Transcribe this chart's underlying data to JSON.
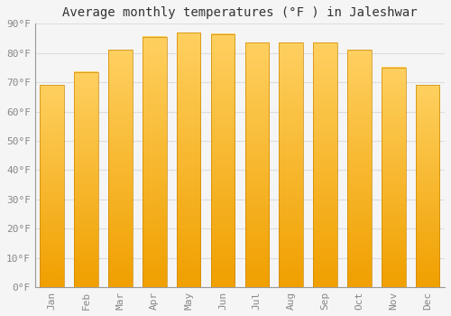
{
  "title": "Average monthly temperatures (°F ) in Jaleshwar",
  "months": [
    "Jan",
    "Feb",
    "Mar",
    "Apr",
    "May",
    "Jun",
    "Jul",
    "Aug",
    "Sep",
    "Oct",
    "Nov",
    "Dec"
  ],
  "values": [
    69,
    73.5,
    81,
    85.5,
    87,
    86.5,
    83.5,
    83.5,
    83.5,
    81,
    75,
    69
  ],
  "bar_color_top": "#FFD060",
  "bar_color_bottom": "#F0A000",
  "bar_edge_color": "#CC8800",
  "ylim": [
    0,
    90
  ],
  "yticks": [
    0,
    10,
    20,
    30,
    40,
    50,
    60,
    70,
    80,
    90
  ],
  "ytick_labels": [
    "0°F",
    "10°F",
    "20°F",
    "30°F",
    "40°F",
    "50°F",
    "60°F",
    "70°F",
    "80°F",
    "90°F"
  ],
  "background_color": "#F5F5F5",
  "grid_color": "#DDDDDD",
  "title_fontsize": 10,
  "tick_fontsize": 8,
  "bar_width": 0.7
}
